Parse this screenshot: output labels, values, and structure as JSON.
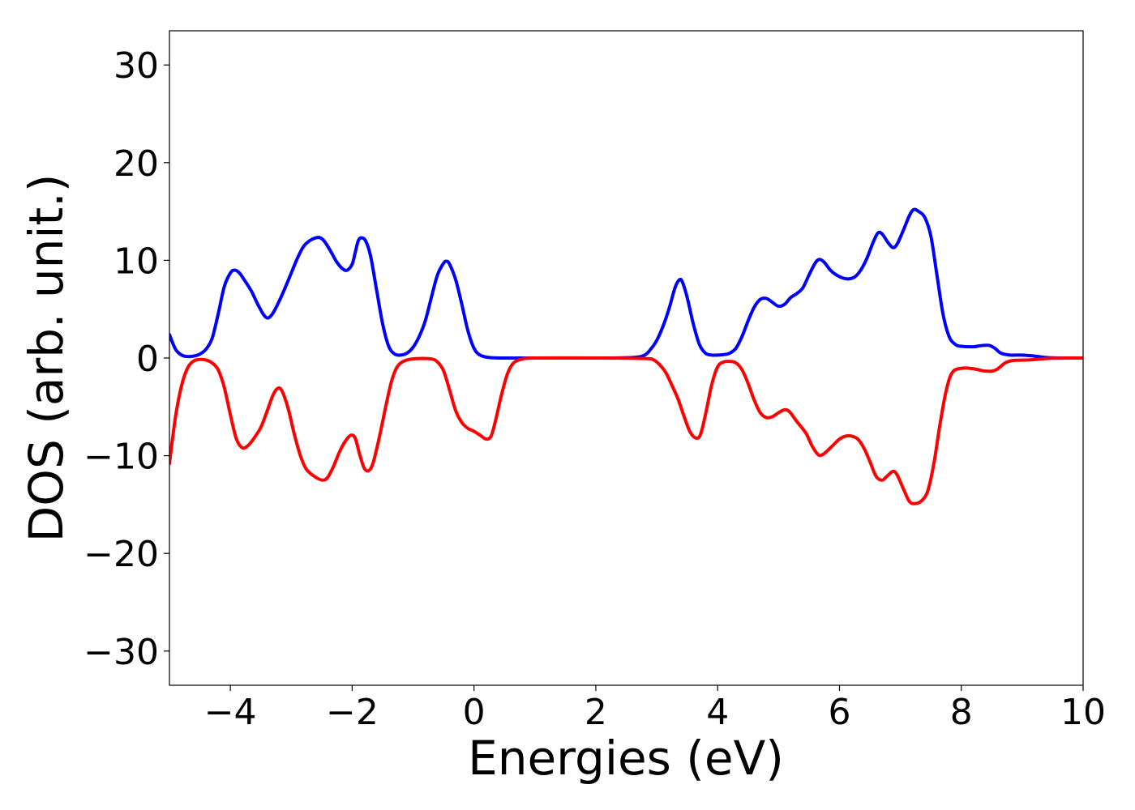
{
  "chart_data": {
    "type": "line",
    "title": "",
    "xlabel": "Energies (eV)",
    "ylabel": "DOS (arb. unit.)",
    "xlim": [
      -5,
      10
    ],
    "ylim": [
      -33.5,
      33.5
    ],
    "x_ticks": [
      -4,
      -2,
      0,
      2,
      4,
      6,
      8,
      10
    ],
    "x_tick_labels": [
      "−4",
      "−2",
      "0",
      "2",
      "4",
      "6",
      "8",
      "10"
    ],
    "y_ticks": [
      30,
      20,
      10,
      0,
      -10,
      -20,
      -30
    ],
    "y_tick_labels": [
      "30",
      "20",
      "10",
      "0",
      "−10",
      "−20",
      "−30"
    ],
    "grid": false,
    "legend": "none",
    "series": [
      {
        "color": "#0000ff",
        "points": [
          [
            -5.0,
            2.4
          ],
          [
            -4.9,
            0.9
          ],
          [
            -4.8,
            0.3
          ],
          [
            -4.7,
            0.15
          ],
          [
            -4.6,
            0.2
          ],
          [
            -4.5,
            0.4
          ],
          [
            -4.4,
            0.9
          ],
          [
            -4.3,
            2.0
          ],
          [
            -4.2,
            4.5
          ],
          [
            -4.1,
            7.3
          ],
          [
            -4.0,
            8.7
          ],
          [
            -3.93,
            9.0
          ],
          [
            -3.85,
            8.7
          ],
          [
            -3.75,
            7.8
          ],
          [
            -3.65,
            6.8
          ],
          [
            -3.55,
            5.5
          ],
          [
            -3.45,
            4.4
          ],
          [
            -3.38,
            4.1
          ],
          [
            -3.3,
            4.6
          ],
          [
            -3.2,
            5.8
          ],
          [
            -3.1,
            7.2
          ],
          [
            -3.0,
            8.7
          ],
          [
            -2.9,
            10.2
          ],
          [
            -2.8,
            11.4
          ],
          [
            -2.7,
            12.0
          ],
          [
            -2.6,
            12.3
          ],
          [
            -2.52,
            12.3
          ],
          [
            -2.45,
            11.9
          ],
          [
            -2.35,
            10.9
          ],
          [
            -2.25,
            9.8
          ],
          [
            -2.15,
            9.1
          ],
          [
            -2.08,
            9.0
          ],
          [
            -2.0,
            9.6
          ],
          [
            -1.95,
            10.8
          ],
          [
            -1.9,
            12.0
          ],
          [
            -1.85,
            12.3
          ],
          [
            -1.78,
            12.0
          ],
          [
            -1.7,
            10.5
          ],
          [
            -1.6,
            7.0
          ],
          [
            -1.5,
            3.5
          ],
          [
            -1.4,
            1.2
          ],
          [
            -1.3,
            0.4
          ],
          [
            -1.2,
            0.3
          ],
          [
            -1.1,
            0.5
          ],
          [
            -1.0,
            1.1
          ],
          [
            -0.9,
            2.2
          ],
          [
            -0.8,
            3.8
          ],
          [
            -0.7,
            6.2
          ],
          [
            -0.6,
            8.5
          ],
          [
            -0.5,
            9.7
          ],
          [
            -0.45,
            9.9
          ],
          [
            -0.4,
            9.6
          ],
          [
            -0.3,
            8.0
          ],
          [
            -0.2,
            5.5
          ],
          [
            -0.1,
            2.8
          ],
          [
            0.0,
            1.0
          ],
          [
            0.1,
            0.3
          ],
          [
            0.25,
            0.05
          ],
          [
            0.5,
            0.0
          ],
          [
            1.0,
            0.0
          ],
          [
            2.0,
            0.0
          ],
          [
            2.6,
            0.05
          ],
          [
            2.8,
            0.3
          ],
          [
            2.9,
            0.9
          ],
          [
            3.0,
            1.8
          ],
          [
            3.1,
            3.2
          ],
          [
            3.2,
            5.0
          ],
          [
            3.3,
            7.2
          ],
          [
            3.37,
            8.0
          ],
          [
            3.42,
            7.8
          ],
          [
            3.5,
            6.2
          ],
          [
            3.6,
            3.5
          ],
          [
            3.7,
            1.4
          ],
          [
            3.8,
            0.5
          ],
          [
            3.9,
            0.3
          ],
          [
            4.0,
            0.3
          ],
          [
            4.1,
            0.35
          ],
          [
            4.2,
            0.5
          ],
          [
            4.3,
            1.0
          ],
          [
            4.4,
            2.2
          ],
          [
            4.5,
            3.8
          ],
          [
            4.6,
            5.2
          ],
          [
            4.7,
            6.0
          ],
          [
            4.8,
            6.1
          ],
          [
            4.9,
            5.7
          ],
          [
            5.0,
            5.3
          ],
          [
            5.1,
            5.5
          ],
          [
            5.2,
            6.2
          ],
          [
            5.3,
            6.6
          ],
          [
            5.4,
            7.2
          ],
          [
            5.5,
            8.5
          ],
          [
            5.6,
            9.7
          ],
          [
            5.67,
            10.1
          ],
          [
            5.75,
            9.8
          ],
          [
            5.85,
            9.0
          ],
          [
            5.95,
            8.5
          ],
          [
            6.05,
            8.2
          ],
          [
            6.15,
            8.1
          ],
          [
            6.25,
            8.3
          ],
          [
            6.35,
            9.0
          ],
          [
            6.45,
            10.2
          ],
          [
            6.55,
            11.8
          ],
          [
            6.63,
            12.8
          ],
          [
            6.7,
            12.7
          ],
          [
            6.8,
            11.8
          ],
          [
            6.88,
            11.3
          ],
          [
            6.95,
            11.7
          ],
          [
            7.05,
            13.1
          ],
          [
            7.15,
            14.6
          ],
          [
            7.22,
            15.2
          ],
          [
            7.3,
            15.0
          ],
          [
            7.4,
            14.4
          ],
          [
            7.5,
            12.5
          ],
          [
            7.6,
            8.5
          ],
          [
            7.7,
            4.5
          ],
          [
            7.8,
            2.2
          ],
          [
            7.9,
            1.4
          ],
          [
            8.0,
            1.2
          ],
          [
            8.2,
            1.15
          ],
          [
            8.3,
            1.25
          ],
          [
            8.45,
            1.3
          ],
          [
            8.55,
            1.0
          ],
          [
            8.65,
            0.5
          ],
          [
            8.8,
            0.3
          ],
          [
            9.0,
            0.3
          ],
          [
            9.2,
            0.2
          ],
          [
            9.4,
            0.05
          ],
          [
            9.6,
            0.0
          ],
          [
            10.0,
            0.0
          ]
        ]
      },
      {
        "color": "#ff0000",
        "points": [
          [
            -5.0,
            -10.8
          ],
          [
            -4.9,
            -6.0
          ],
          [
            -4.8,
            -2.8
          ],
          [
            -4.7,
            -1.0
          ],
          [
            -4.6,
            -0.3
          ],
          [
            -4.5,
            -0.15
          ],
          [
            -4.4,
            -0.2
          ],
          [
            -4.3,
            -0.5
          ],
          [
            -4.2,
            -1.2
          ],
          [
            -4.1,
            -3.0
          ],
          [
            -4.0,
            -5.8
          ],
          [
            -3.9,
            -8.3
          ],
          [
            -3.8,
            -9.2
          ],
          [
            -3.7,
            -8.9
          ],
          [
            -3.6,
            -8.1
          ],
          [
            -3.5,
            -7.1
          ],
          [
            -3.4,
            -5.5
          ],
          [
            -3.3,
            -3.8
          ],
          [
            -3.22,
            -3.1
          ],
          [
            -3.15,
            -3.4
          ],
          [
            -3.05,
            -5.2
          ],
          [
            -2.95,
            -7.8
          ],
          [
            -2.85,
            -10.0
          ],
          [
            -2.75,
            -11.4
          ],
          [
            -2.6,
            -12.2
          ],
          [
            -2.48,
            -12.5
          ],
          [
            -2.4,
            -12.2
          ],
          [
            -2.3,
            -11.0
          ],
          [
            -2.2,
            -9.5
          ],
          [
            -2.1,
            -8.4
          ],
          [
            -2.02,
            -7.9
          ],
          [
            -1.95,
            -8.2
          ],
          [
            -1.88,
            -9.8
          ],
          [
            -1.8,
            -11.3
          ],
          [
            -1.72,
            -11.5
          ],
          [
            -1.65,
            -10.6
          ],
          [
            -1.55,
            -8.0
          ],
          [
            -1.45,
            -5.0
          ],
          [
            -1.35,
            -2.3
          ],
          [
            -1.25,
            -0.8
          ],
          [
            -1.1,
            -0.2
          ],
          [
            -0.9,
            -0.05
          ],
          [
            -0.7,
            -0.1
          ],
          [
            -0.6,
            -0.4
          ],
          [
            -0.5,
            -1.3
          ],
          [
            -0.4,
            -3.3
          ],
          [
            -0.3,
            -5.4
          ],
          [
            -0.2,
            -6.6
          ],
          [
            -0.1,
            -7.2
          ],
          [
            0.0,
            -7.5
          ],
          [
            0.1,
            -7.9
          ],
          [
            0.2,
            -8.3
          ],
          [
            0.28,
            -8.0
          ],
          [
            0.35,
            -6.5
          ],
          [
            0.45,
            -3.8
          ],
          [
            0.55,
            -1.6
          ],
          [
            0.65,
            -0.5
          ],
          [
            0.8,
            -0.1
          ],
          [
            1.0,
            0.0
          ],
          [
            2.0,
            0.0
          ],
          [
            2.8,
            -0.05
          ],
          [
            2.95,
            -0.2
          ],
          [
            3.05,
            -0.7
          ],
          [
            3.15,
            -1.5
          ],
          [
            3.25,
            -2.8
          ],
          [
            3.35,
            -4.2
          ],
          [
            3.45,
            -6.0
          ],
          [
            3.55,
            -7.6
          ],
          [
            3.65,
            -8.2
          ],
          [
            3.72,
            -7.8
          ],
          [
            3.8,
            -5.8
          ],
          [
            3.9,
            -2.8
          ],
          [
            4.0,
            -0.9
          ],
          [
            4.1,
            -0.4
          ],
          [
            4.2,
            -0.35
          ],
          [
            4.3,
            -0.5
          ],
          [
            4.4,
            -1.2
          ],
          [
            4.5,
            -2.6
          ],
          [
            4.6,
            -4.3
          ],
          [
            4.7,
            -5.6
          ],
          [
            4.8,
            -6.1
          ],
          [
            4.9,
            -6.0
          ],
          [
            5.0,
            -5.6
          ],
          [
            5.1,
            -5.3
          ],
          [
            5.18,
            -5.5
          ],
          [
            5.3,
            -6.5
          ],
          [
            5.45,
            -7.7
          ],
          [
            5.55,
            -9.0
          ],
          [
            5.65,
            -9.9
          ],
          [
            5.72,
            -9.9
          ],
          [
            5.8,
            -9.5
          ],
          [
            5.9,
            -8.9
          ],
          [
            6.0,
            -8.3
          ],
          [
            6.1,
            -8.0
          ],
          [
            6.2,
            -8.0
          ],
          [
            6.3,
            -8.3
          ],
          [
            6.4,
            -9.2
          ],
          [
            6.5,
            -10.6
          ],
          [
            6.6,
            -12.1
          ],
          [
            6.7,
            -12.5
          ],
          [
            6.78,
            -12.1
          ],
          [
            6.88,
            -11.6
          ],
          [
            6.95,
            -12.0
          ],
          [
            7.05,
            -13.4
          ],
          [
            7.15,
            -14.7
          ],
          [
            7.25,
            -14.9
          ],
          [
            7.35,
            -14.6
          ],
          [
            7.45,
            -13.6
          ],
          [
            7.55,
            -10.8
          ],
          [
            7.65,
            -6.8
          ],
          [
            7.75,
            -3.4
          ],
          [
            7.85,
            -1.5
          ],
          [
            8.0,
            -1.05
          ],
          [
            8.2,
            -1.1
          ],
          [
            8.35,
            -1.3
          ],
          [
            8.5,
            -1.35
          ],
          [
            8.6,
            -1.1
          ],
          [
            8.72,
            -0.5
          ],
          [
            8.85,
            -0.25
          ],
          [
            9.1,
            -0.2
          ],
          [
            9.3,
            -0.1
          ],
          [
            9.5,
            -0.02
          ],
          [
            10.0,
            0.0
          ]
        ]
      }
    ]
  }
}
